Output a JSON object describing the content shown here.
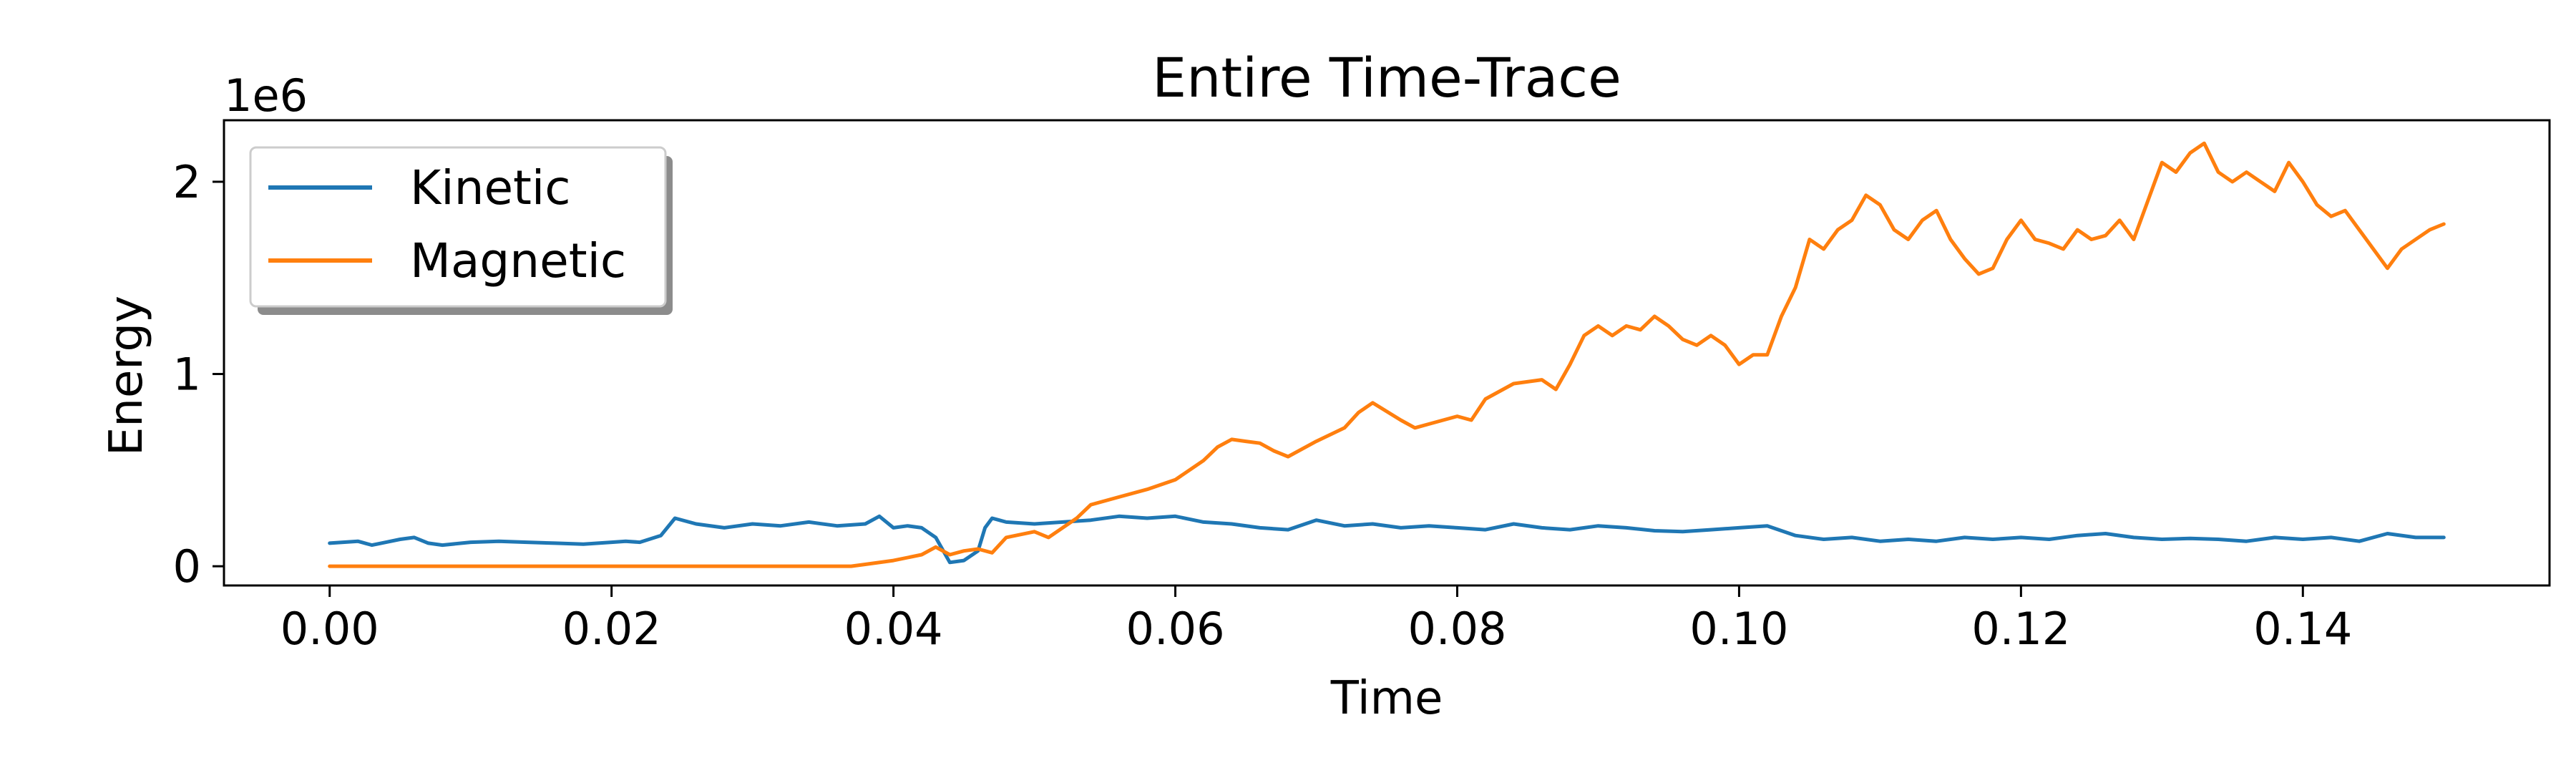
{
  "chart_data": {
    "type": "line",
    "title": "Entire Time-Trace",
    "xlabel": "Time",
    "ylabel": "Energy",
    "y_offset_label": "1e6",
    "xlim": [
      -0.0075,
      0.1575
    ],
    "ylim": [
      -100000,
      2320000
    ],
    "xticks": [
      0.0,
      0.02,
      0.04,
      0.06,
      0.08,
      0.1,
      0.12,
      0.14
    ],
    "xtick_labels": [
      "0.00",
      "0.02",
      "0.04",
      "0.06",
      "0.08",
      "0.10",
      "0.12",
      "0.14"
    ],
    "yticks": [
      0,
      1000000,
      2000000
    ],
    "ytick_labels": [
      "0",
      "1",
      "2"
    ],
    "grid": false,
    "legend_position": "top-left",
    "series": [
      {
        "name": "Kinetic",
        "color": "#1f77b4",
        "x": [
          0.0,
          0.002,
          0.003,
          0.004,
          0.005,
          0.006,
          0.007,
          0.008,
          0.01,
          0.012,
          0.014,
          0.016,
          0.018,
          0.02,
          0.021,
          0.022,
          0.0235,
          0.0245,
          0.026,
          0.028,
          0.03,
          0.032,
          0.034,
          0.036,
          0.038,
          0.039,
          0.04,
          0.041,
          0.042,
          0.043,
          0.044,
          0.045,
          0.046,
          0.0465,
          0.047,
          0.048,
          0.05,
          0.052,
          0.054,
          0.056,
          0.058,
          0.06,
          0.062,
          0.064,
          0.066,
          0.068,
          0.07,
          0.072,
          0.074,
          0.076,
          0.078,
          0.08,
          0.082,
          0.084,
          0.086,
          0.088,
          0.09,
          0.092,
          0.094,
          0.096,
          0.098,
          0.1,
          0.102,
          0.104,
          0.106,
          0.108,
          0.11,
          0.112,
          0.114,
          0.116,
          0.118,
          0.12,
          0.122,
          0.124,
          0.126,
          0.128,
          0.13,
          0.132,
          0.134,
          0.136,
          0.138,
          0.14,
          0.142,
          0.144,
          0.146,
          0.148,
          0.15
        ],
        "y": [
          120000,
          130000,
          110000,
          125000,
          140000,
          150000,
          120000,
          110000,
          125000,
          130000,
          125000,
          120000,
          115000,
          125000,
          130000,
          125000,
          160000,
          250000,
          220000,
          200000,
          220000,
          210000,
          230000,
          210000,
          220000,
          260000,
          200000,
          210000,
          200000,
          150000,
          20000,
          30000,
          80000,
          200000,
          250000,
          230000,
          220000,
          230000,
          240000,
          260000,
          250000,
          260000,
          230000,
          220000,
          200000,
          190000,
          240000,
          210000,
          220000,
          200000,
          210000,
          200000,
          190000,
          220000,
          200000,
          190000,
          210000,
          200000,
          185000,
          180000,
          190000,
          200000,
          210000,
          160000,
          140000,
          150000,
          130000,
          140000,
          130000,
          150000,
          140000,
          150000,
          140000,
          160000,
          170000,
          150000,
          140000,
          145000,
          140000,
          130000,
          150000,
          140000,
          150000,
          130000,
          170000,
          150000,
          150000
        ]
      },
      {
        "name": "Magnetic",
        "color": "#ff7f0e",
        "x": [
          0.0,
          0.005,
          0.01,
          0.015,
          0.02,
          0.025,
          0.03,
          0.035,
          0.037,
          0.038,
          0.04,
          0.042,
          0.043,
          0.044,
          0.045,
          0.046,
          0.047,
          0.048,
          0.05,
          0.051,
          0.052,
          0.053,
          0.054,
          0.056,
          0.058,
          0.06,
          0.062,
          0.063,
          0.064,
          0.065,
          0.066,
          0.067,
          0.068,
          0.07,
          0.072,
          0.073,
          0.074,
          0.076,
          0.077,
          0.078,
          0.08,
          0.081,
          0.082,
          0.084,
          0.086,
          0.087,
          0.088,
          0.089,
          0.09,
          0.091,
          0.092,
          0.093,
          0.094,
          0.095,
          0.096,
          0.097,
          0.098,
          0.099,
          0.1,
          0.101,
          0.102,
          0.103,
          0.104,
          0.105,
          0.106,
          0.107,
          0.108,
          0.109,
          0.11,
          0.111,
          0.112,
          0.113,
          0.114,
          0.115,
          0.116,
          0.117,
          0.118,
          0.119,
          0.12,
          0.121,
          0.122,
          0.123,
          0.124,
          0.125,
          0.126,
          0.127,
          0.128,
          0.129,
          0.13,
          0.131,
          0.132,
          0.133,
          0.134,
          0.135,
          0.136,
          0.137,
          0.138,
          0.139,
          0.14,
          0.141,
          0.142,
          0.143,
          0.144,
          0.145,
          0.146,
          0.147,
          0.148,
          0.149,
          0.15
        ],
        "y": [
          0,
          0,
          0,
          0,
          0,
          0,
          0,
          0,
          0,
          10000,
          30000,
          60000,
          100000,
          60000,
          80000,
          90000,
          70000,
          150000,
          180000,
          150000,
          200000,
          250000,
          320000,
          360000,
          400000,
          450000,
          550000,
          620000,
          660000,
          650000,
          640000,
          600000,
          570000,
          650000,
          720000,
          800000,
          850000,
          760000,
          720000,
          740000,
          780000,
          760000,
          870000,
          950000,
          970000,
          920000,
          1050000,
          1200000,
          1250000,
          1200000,
          1250000,
          1230000,
          1300000,
          1250000,
          1180000,
          1150000,
          1200000,
          1150000,
          1050000,
          1100000,
          1100000,
          1300000,
          1450000,
          1700000,
          1650000,
          1750000,
          1800000,
          1930000,
          1880000,
          1750000,
          1700000,
          1800000,
          1850000,
          1700000,
          1600000,
          1520000,
          1550000,
          1700000,
          1800000,
          1700000,
          1680000,
          1650000,
          1750000,
          1700000,
          1720000,
          1800000,
          1700000,
          1900000,
          2100000,
          2050000,
          2150000,
          2200000,
          2050000,
          2000000,
          2050000,
          2000000,
          1950000,
          2100000,
          2000000,
          1880000,
          1820000,
          1850000,
          1750000,
          1650000,
          1550000,
          1650000,
          1700000,
          1750000,
          1780000
        ]
      }
    ]
  }
}
